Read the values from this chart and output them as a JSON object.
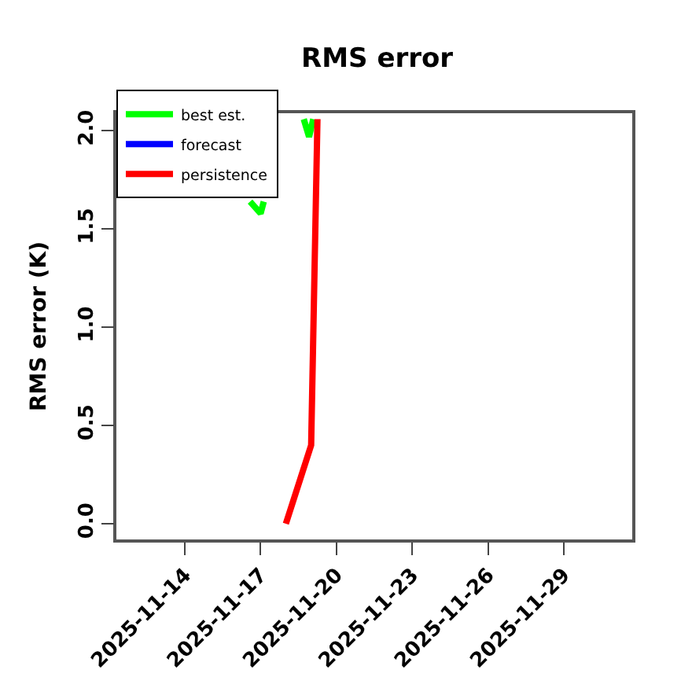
{
  "chart_data": {
    "type": "line",
    "title": "RMS error",
    "ylabel": "RMS error (K)",
    "xlim": [
      "2025-11-11T07:00",
      "2025-12-01T17:00"
    ],
    "xticks": [
      "2025-11-14",
      "2025-11-17",
      "2025-11-20",
      "2025-11-23",
      "2025-11-26",
      "2025-11-29"
    ],
    "ylim": [
      -0.08,
      2.09
    ],
    "yticks": [
      {
        "value": 0,
        "label": "0.0"
      },
      {
        "value": 0.5,
        "label": "0.5"
      },
      {
        "value": 1,
        "label": "1.0"
      },
      {
        "value": 1.5,
        "label": "1.5"
      },
      {
        "value": 2,
        "label": "2.0"
      }
    ],
    "series": [
      {
        "name": "best est.",
        "color": "#00ff00",
        "x": [
          "2025-11-16T14:00",
          "2025-11-17",
          "2025-11-17T03:00",
          "2025-11-18T12:00",
          "2025-11-18T17:00",
          "2025-11-18T22:00",
          "2025-11-19T02:00"
        ],
        "values": [
          1.64,
          1.58,
          1.64,
          null,
          2.06,
          1.97,
          2.06
        ]
      },
      {
        "name": "forecast",
        "color": "#0000ff",
        "values": [
          null
        ]
      },
      {
        "name": "persistence",
        "color": "#ff0000",
        "x": [
          "2025-11-18",
          "2025-11-19",
          "2025-11-19T06:00"
        ],
        "values": [
          0,
          0.4,
          2.06
        ]
      }
    ],
    "legend": "top left"
  }
}
